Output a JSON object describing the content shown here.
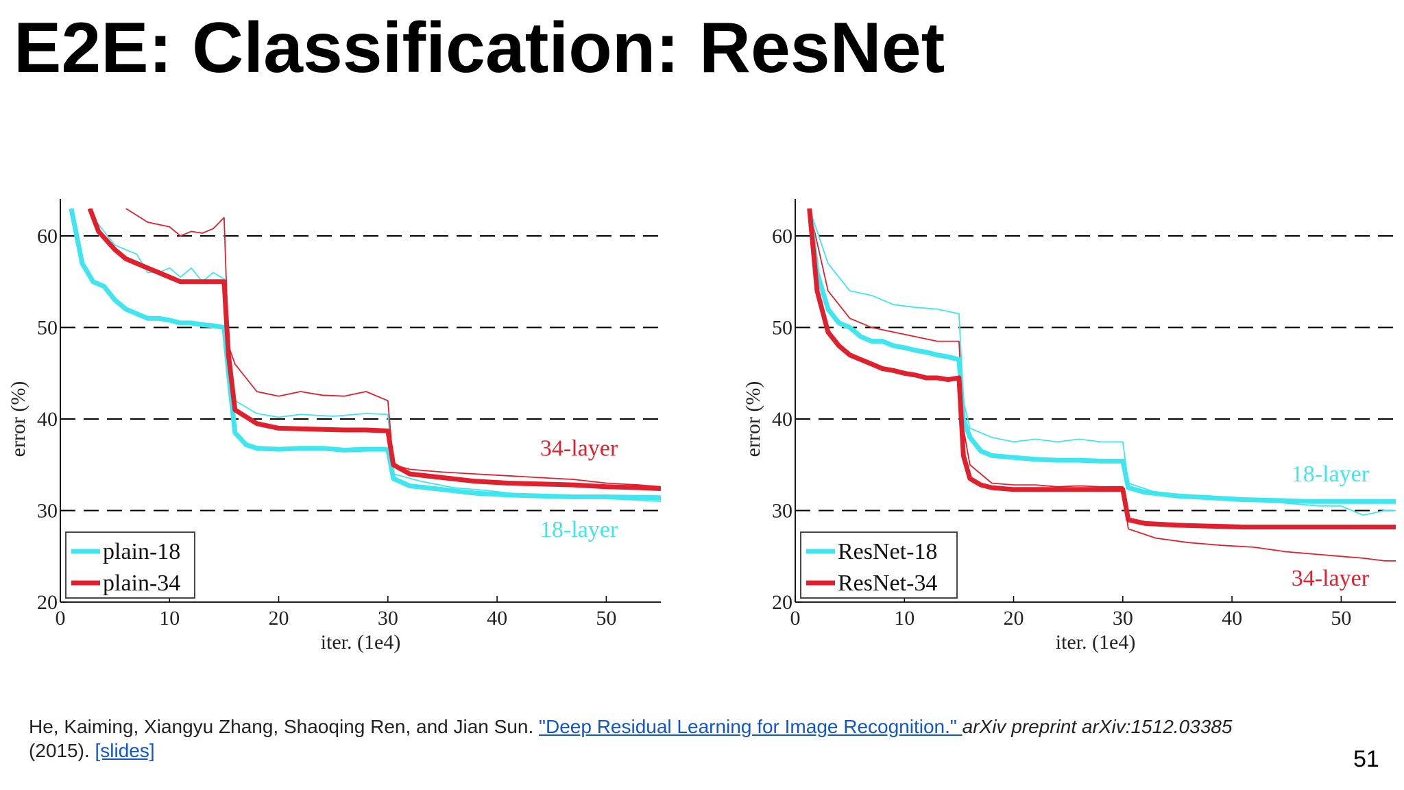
{
  "slide": {
    "title": "E2E: Classification: ResNet",
    "page_number": "51"
  },
  "citation": {
    "authors": "He, Kaiming, Xiangyu Zhang, Shaoqing Ren, and Jian Sun. ",
    "paper_link": "\"Deep Residual Learning for Image Recognition.\" ",
    "venue": "arXiv preprint arXiv:1512.03385",
    "year": "(2015). ",
    "slides_link": "[slides]"
  },
  "colors": {
    "cyan": "#3fe6f0",
    "red": "#e0202c",
    "axis": "#000000",
    "grid": "#000000"
  },
  "chart_data": [
    {
      "type": "line",
      "xlabel": "iter. (1e4)",
      "ylabel": "error (%)",
      "xlim": [
        0,
        55
      ],
      "ylim": [
        20,
        63
      ],
      "xticks": [
        0,
        10,
        20,
        30,
        40,
        50
      ],
      "yticks": [
        20,
        30,
        40,
        50,
        60
      ],
      "grid_y": [
        30,
        40,
        50,
        60
      ],
      "grid_style": "dashed",
      "legend_position": "bottom-left",
      "legend": [
        {
          "label": "plain-18",
          "color": "#3fe6f0"
        },
        {
          "label": "plain-34",
          "color": "#e0202c"
        }
      ],
      "annotations": [
        {
          "text": "34-layer",
          "x": 47.5,
          "y": 36.0,
          "color": "#e0202c"
        },
        {
          "text": "18-layer",
          "x": 47.5,
          "y": 27.1,
          "color": "#3fe6f0"
        }
      ],
      "series": [
        {
          "name": "plain-18",
          "role": "train",
          "color": "#3fe6f0",
          "x": [
            1,
            2,
            3,
            4,
            5,
            6,
            7,
            8,
            9,
            10,
            11,
            12,
            13,
            14,
            15,
            15.4,
            16,
            17,
            18,
            20,
            22,
            24,
            26,
            28,
            30,
            30.5,
            32,
            35,
            38,
            41,
            44,
            47,
            50,
            55
          ],
          "y": [
            63,
            57,
            55,
            54.5,
            53,
            52,
            51.5,
            51,
            51,
            50.8,
            50.5,
            50.5,
            50.3,
            50.2,
            50,
            45,
            38.5,
            37.2,
            36.8,
            36.7,
            36.8,
            36.8,
            36.6,
            36.7,
            36.7,
            33.5,
            32.7,
            32.3,
            31.9,
            31.7,
            31.6,
            31.5,
            31.5,
            31.4
          ]
        },
        {
          "name": "plain-18",
          "role": "val",
          "color": "#3fe6f0",
          "x": [
            3,
            5,
            7,
            8,
            9,
            10,
            11,
            12,
            13,
            14,
            15,
            15.4,
            16,
            18,
            20,
            22,
            25,
            28,
            30,
            30.5,
            33,
            36,
            39,
            42,
            45,
            48,
            50,
            52,
            55
          ],
          "y": [
            62,
            59,
            58,
            56,
            56,
            56.5,
            55.5,
            56.5,
            55,
            56,
            55.3,
            44,
            42,
            40.6,
            40.2,
            40.5,
            40.3,
            40.6,
            40.5,
            34,
            33.2,
            32.5,
            32.2,
            31.8,
            31.7,
            31.4,
            31.3,
            31.2,
            31.0
          ]
        },
        {
          "name": "plain-34",
          "role": "train",
          "color": "#e0202c",
          "x": [
            2.7,
            3.5,
            5,
            6,
            7,
            8,
            9,
            10,
            11,
            12,
            13,
            14,
            15,
            15.4,
            16,
            18,
            20,
            23,
            26,
            28,
            30,
            30.5,
            32,
            35,
            38,
            41,
            44,
            47,
            50,
            53,
            55
          ],
          "y": [
            63,
            60.5,
            58.5,
            57.5,
            57,
            56.5,
            56,
            55.5,
            55,
            55,
            55,
            55,
            55,
            47,
            41,
            39.5,
            39,
            38.9,
            38.8,
            38.8,
            38.7,
            35,
            34,
            33.6,
            33.2,
            33,
            32.9,
            32.8,
            32.6,
            32.5,
            32.4
          ]
        },
        {
          "name": "plain-34",
          "role": "val",
          "color": "#e0202c",
          "x": [
            6,
            8,
            10,
            11,
            12,
            13,
            14,
            15,
            15.4,
            16,
            18,
            20,
            22,
            24,
            26,
            28,
            30,
            30.5,
            32,
            35,
            38,
            41,
            44,
            47,
            50,
            53,
            55
          ],
          "y": [
            63,
            61.5,
            61,
            60,
            60.5,
            60.3,
            60.8,
            62,
            48,
            46,
            43,
            42.5,
            43,
            42.6,
            42.5,
            43,
            42,
            35,
            34.5,
            34.2,
            34,
            33.8,
            33.6,
            33.4,
            33.0,
            32.8,
            32.6
          ]
        }
      ]
    },
    {
      "type": "line",
      "xlabel": "iter. (1e4)",
      "ylabel": "error (%)",
      "xlim": [
        0,
        55
      ],
      "ylim": [
        20,
        63
      ],
      "xticks": [
        0,
        10,
        20,
        30,
        40,
        50
      ],
      "yticks": [
        20,
        30,
        40,
        50,
        60
      ],
      "grid_y": [
        30,
        40,
        50,
        60
      ],
      "grid_style": "dashed",
      "legend_position": "bottom-left",
      "legend": [
        {
          "label": "ResNet-18",
          "color": "#3fe6f0"
        },
        {
          "label": "ResNet-34",
          "color": "#e0202c"
        }
      ],
      "annotations": [
        {
          "text": "18-layer",
          "x": 49.0,
          "y": 33.2,
          "color": "#3fe6f0"
        },
        {
          "text": "34-layer",
          "x": 49.0,
          "y": 21.8,
          "color": "#e0202c"
        }
      ],
      "series": [
        {
          "name": "ResNet-18",
          "role": "train",
          "color": "#3fe6f0",
          "x": [
            1.3,
            2,
            3,
            4,
            5,
            6,
            7,
            8,
            9,
            10,
            11,
            12,
            13,
            14,
            15,
            15.4,
            16,
            17,
            18,
            20,
            22,
            24,
            26,
            28,
            30,
            30.5,
            32,
            35,
            38,
            41,
            44,
            47,
            50,
            55
          ],
          "y": [
            63,
            56,
            52,
            50.5,
            50,
            49,
            48.5,
            48.5,
            48,
            47.8,
            47.5,
            47.3,
            47,
            46.8,
            46.5,
            40,
            38,
            36.5,
            36,
            35.8,
            35.6,
            35.5,
            35.5,
            35.4,
            35.4,
            32.5,
            32,
            31.6,
            31.4,
            31.2,
            31.1,
            31.0,
            31.0,
            31.0
          ]
        },
        {
          "name": "ResNet-18",
          "role": "val",
          "color": "#3fe6f0",
          "x": [
            1.3,
            3,
            5,
            7,
            9,
            11,
            13,
            15,
            15.4,
            16,
            18,
            20,
            22,
            24,
            26,
            28,
            30,
            30.5,
            33,
            36,
            39,
            42,
            45,
            48,
            50,
            52,
            54,
            55
          ],
          "y": [
            63,
            57,
            54,
            53.5,
            52.5,
            52.2,
            52,
            51.5,
            42,
            39,
            38,
            37.5,
            37.8,
            37.5,
            37.8,
            37.5,
            37.5,
            33,
            32,
            31.7,
            31.5,
            31.2,
            30.8,
            30.5,
            30.5,
            29.5,
            30,
            30
          ]
        },
        {
          "name": "ResNet-34",
          "role": "train",
          "color": "#e0202c",
          "x": [
            1.3,
            2,
            3,
            4,
            5,
            6,
            7,
            8,
            9,
            10,
            11,
            12,
            13,
            14,
            15,
            15.4,
            16,
            17,
            18,
            20,
            22,
            24,
            26,
            28,
            30,
            30.5,
            32,
            35,
            38,
            41,
            44,
            47,
            50,
            55
          ],
          "y": [
            63,
            54,
            49.5,
            48,
            47,
            46.5,
            46,
            45.5,
            45.3,
            45,
            44.8,
            44.5,
            44.5,
            44.3,
            44.5,
            36,
            33.5,
            32.8,
            32.5,
            32.3,
            32.3,
            32.3,
            32.3,
            32.3,
            32.3,
            29,
            28.6,
            28.4,
            28.3,
            28.2,
            28.2,
            28.2,
            28.2,
            28.2
          ]
        },
        {
          "name": "ResNet-34",
          "role": "val",
          "color": "#e0202c",
          "x": [
            1.3,
            3,
            5,
            7,
            9,
            11,
            13,
            15,
            15.4,
            16,
            18,
            20,
            22,
            24,
            26,
            28,
            30,
            30.5,
            33,
            36,
            39,
            42,
            45,
            48,
            50,
            52,
            54,
            55
          ],
          "y": [
            63,
            54,
            51,
            50,
            49.5,
            49,
            48.5,
            48.5,
            39,
            35,
            33,
            32.8,
            32.8,
            32.6,
            32.7,
            32.6,
            32.6,
            28,
            27,
            26.5,
            26.2,
            26,
            25.5,
            25.2,
            25,
            24.8,
            24.5,
            24.5
          ]
        }
      ]
    }
  ]
}
